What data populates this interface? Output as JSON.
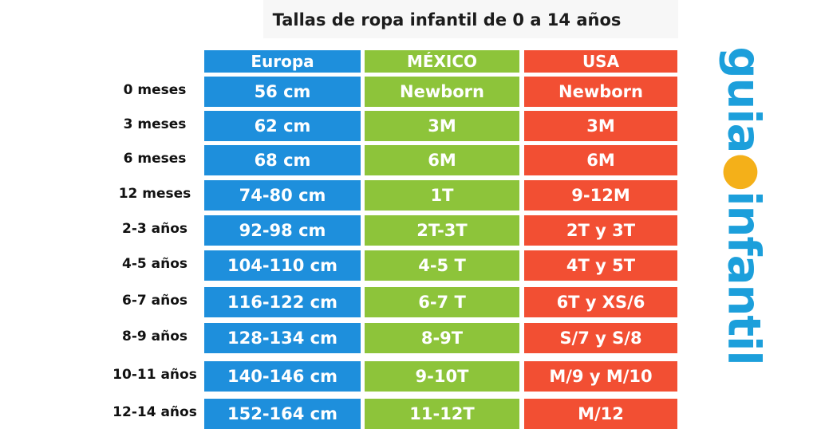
{
  "title": "Tallas de ropa infantil de 0 a 14 años",
  "headers": {
    "europa": "Europa",
    "mexico": "MÉXICO",
    "usa": "USA"
  },
  "rows": [
    {
      "age": "0 meses",
      "europa": "56 cm",
      "mexico": "Newborn",
      "usa": "Newborn"
    },
    {
      "age": "3 meses",
      "europa": "62 cm",
      "mexico": "3M",
      "usa": "3M"
    },
    {
      "age": "6 meses",
      "europa": "68 cm",
      "mexico": "6M",
      "usa": "6M"
    },
    {
      "age": "12 meses",
      "europa": "74-80 cm",
      "mexico": "1T",
      "usa": "9-12M"
    },
    {
      "age": "2-3 años",
      "europa": "92-98 cm",
      "mexico": "2T-3T",
      "usa": "2T y 3T"
    },
    {
      "age": "4-5 años",
      "europa": "104-110 cm",
      "mexico": "4-5 T",
      "usa": "4T y 5T"
    },
    {
      "age": "6-7 años",
      "europa": "116-122 cm",
      "mexico": "6-7 T",
      "usa": "6T y XS/6"
    },
    {
      "age": "8-9 años",
      "europa": "128-134 cm",
      "mexico": "8-9T",
      "usa": "S/7 y S/8"
    },
    {
      "age": "10-11 años",
      "europa": "140-146 cm",
      "mexico": "9-10T",
      "usa": "M/9 y M/10"
    },
    {
      "age": "12-14 años",
      "europa": "152-164 cm",
      "mexico": "11-12T",
      "usa": "M/12"
    }
  ],
  "logo": {
    "part1": "guia",
    "part2": "infantil",
    "dot": "●"
  },
  "colors": {
    "europa": "#1e8fdc",
    "mexico": "#8dc43a",
    "usa": "#f24f33",
    "logo_blue": "#1c9fdb",
    "logo_dot": "#f4b019"
  }
}
